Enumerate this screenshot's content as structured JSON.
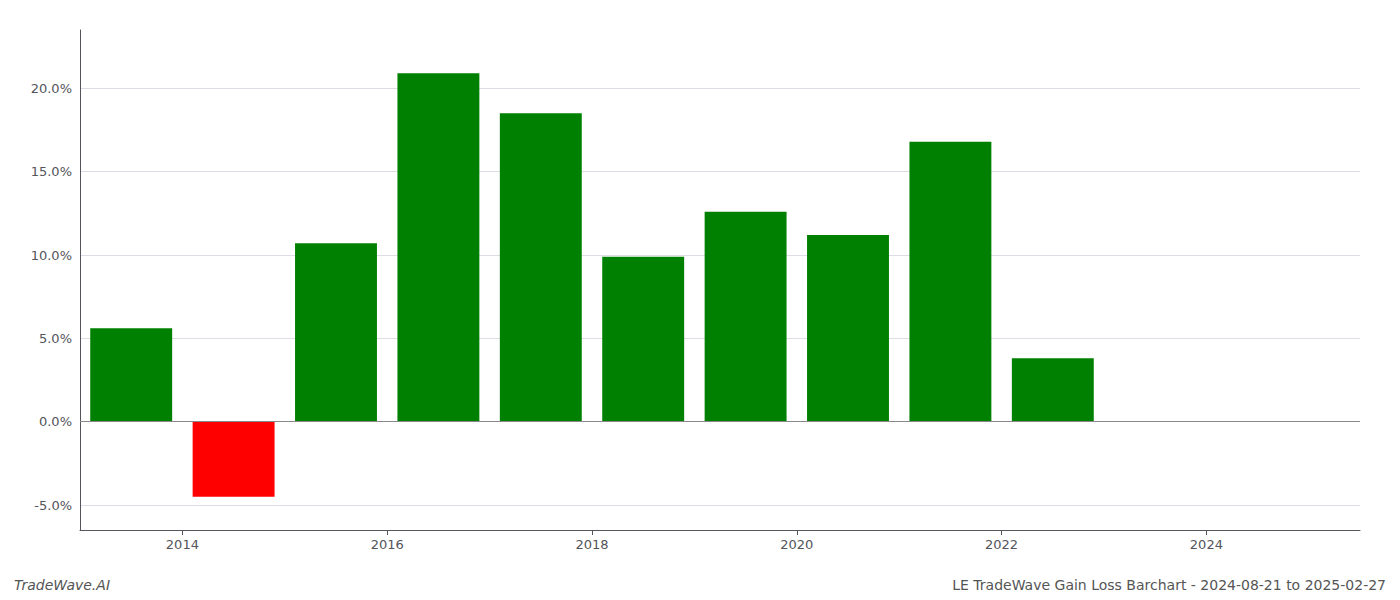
{
  "chart_data": {
    "type": "bar",
    "x": [
      2013.5,
      2014.5,
      2015.5,
      2016.5,
      2017.5,
      2018.5,
      2019.5,
      2020.5,
      2021.5,
      2022.5,
      2023.5
    ],
    "values": [
      5.6,
      -4.5,
      10.7,
      20.9,
      18.5,
      9.9,
      12.6,
      11.2,
      16.8,
      3.8,
      null
    ],
    "colors": [
      "#008000",
      "#ff0000",
      "#008000",
      "#008000",
      "#008000",
      "#008000",
      "#008000",
      "#008000",
      "#008000",
      "#008000",
      "#008000"
    ],
    "xlim": [
      2013.0,
      2025.5
    ],
    "xticks": [
      2014,
      2016,
      2018,
      2020,
      2022,
      2024
    ],
    "ylim": [
      -6.5,
      23.5
    ],
    "yticks": [
      {
        "value": -5.0,
        "label": "-5.0%"
      },
      {
        "value": 0.0,
        "label": "0.0%"
      },
      {
        "value": 5.0,
        "label": "5.0%"
      },
      {
        "value": 10.0,
        "label": "10.0%"
      },
      {
        "value": 15.0,
        "label": "15.0%"
      },
      {
        "value": 20.0,
        "label": "20.0%"
      }
    ],
    "grid": true,
    "annotations": [
      "TradeWave.AI",
      "LE TradeWave Gain Loss Barchart - 2024-08-21 to 2025-02-27"
    ]
  }
}
